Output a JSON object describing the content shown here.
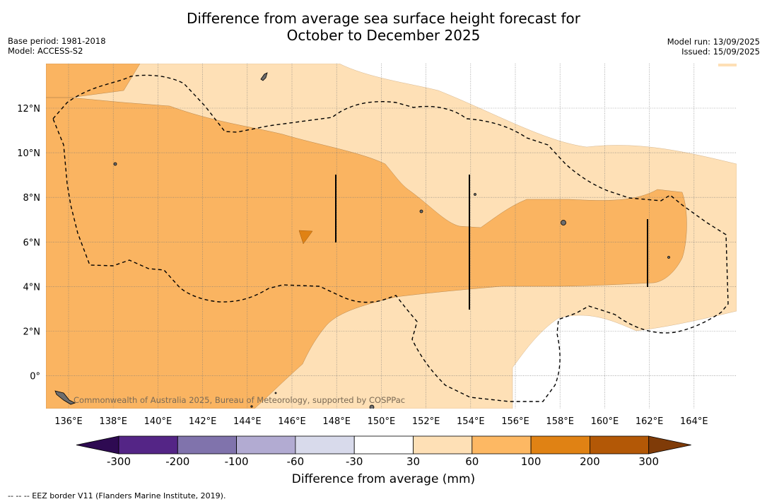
{
  "title_line1": "Difference from average sea surface height forecast for",
  "title_line2": "October to December 2025",
  "base_period": "Base period: 1981-2018",
  "model": "Model: ACCESS-S2",
  "model_run": "Model run: 13/09/2025",
  "issued": "Issued: 15/09/2025",
  "copyright": "Commonwealth of Australia 2025, Bureau of Meteorology, supported by COSPPac",
  "lat_labels": [
    "12°N",
    "10°N",
    "8°N",
    "6°N",
    "4°N",
    "2°N",
    "0°"
  ],
  "lon_labels": [
    "136°E",
    "138°E",
    "140°E",
    "142°E",
    "144°E",
    "146°E",
    "148°E",
    "150°E",
    "152°E",
    "154°E",
    "156°E",
    "158°E",
    "160°E",
    "162°E",
    "164°E"
  ],
  "colorbar": {
    "title": "Difference from average (mm)",
    "tick_labels": [
      "-300",
      "-200",
      "-100",
      "-60",
      "-30",
      "30",
      "60",
      "100",
      "200",
      "300"
    ],
    "colors": [
      "#2e0a52",
      "#542586",
      "#8073ac",
      "#b2abd2",
      "#d8daeb",
      "#ffffff",
      "#fee0b6",
      "#fdb863",
      "#e08214",
      "#b35806",
      "#7f3b08"
    ]
  },
  "footnote": "-- -- -- EEZ border V11 (Flanders Marine Institute, 2019)."
}
